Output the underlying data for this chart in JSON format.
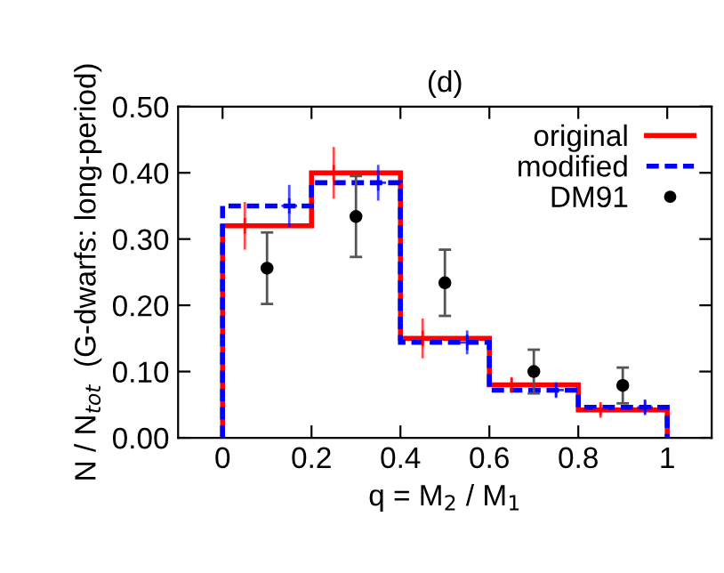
{
  "chart_data": {
    "type": "histogram",
    "title": "(d)",
    "xlabel": "q = M$_{2}$ / M$_{1}$",
    "ylabel": "N / N$_{tot}$  (G-dwarfs: long-period)",
    "bins": [
      0,
      0.2,
      0.4,
      0.6,
      0.8,
      1
    ],
    "series": [
      {
        "name": "original",
        "color": "#ff0000",
        "line_style": "solid",
        "values": [
          0.32,
          0.4,
          0.15,
          0.08,
          0.042
        ]
      },
      {
        "name": "modified",
        "color": "#0000ff",
        "line_style": "dashed",
        "values": [
          0.35,
          0.385,
          0.144,
          0.072,
          0.046
        ]
      },
      {
        "type": "scatter",
        "color": "#ff0000",
        "marker": "cross",
        "x": [
          0.05,
          0.25,
          0.45,
          0.65,
          0.85
        ],
        "values": [
          0.32,
          0.4,
          0.15,
          0.08,
          0.042
        ],
        "errors": [
          0.036,
          0.039,
          0.03,
          0.01,
          0.008
        ]
      },
      {
        "type": "scatter",
        "color": "#0000ff",
        "marker": "cross",
        "x": [
          0.15,
          0.35,
          0.55,
          0.75,
          0.95
        ],
        "values": [
          0.35,
          0.385,
          0.144,
          0.072,
          0.046
        ],
        "errors": [
          0.032,
          0.027,
          0.018,
          0.01,
          0.01
        ]
      },
      {
        "name": "DM91",
        "type": "scatter",
        "color": "#000000",
        "marker": "circle",
        "x": [
          0.1,
          0.3,
          0.5,
          0.7,
          0.9
        ],
        "values": [
          0.256,
          0.334,
          0.234,
          0.1,
          0.079
        ],
        "errors": [
          0.054,
          0.061,
          0.05,
          0.033,
          0.027
        ]
      }
    ],
    "xlim": [
      -0.1,
      1.1
    ],
    "xticks": [
      0,
      0.2,
      0.4,
      0.6,
      0.8,
      1
    ],
    "ylim": [
      0,
      0.5
    ],
    "yticks": [
      {
        "value": 0,
        "label": "0.00"
      },
      {
        "value": 0.1,
        "label": "0.10"
      },
      {
        "value": 0.2,
        "label": "0.20"
      },
      {
        "value": 0.3,
        "label": "0.30"
      },
      {
        "value": 0.4,
        "label": "0.40"
      },
      {
        "value": 0.5,
        "label": "0.50"
      }
    ],
    "legend": "top right",
    "grid": false
  }
}
